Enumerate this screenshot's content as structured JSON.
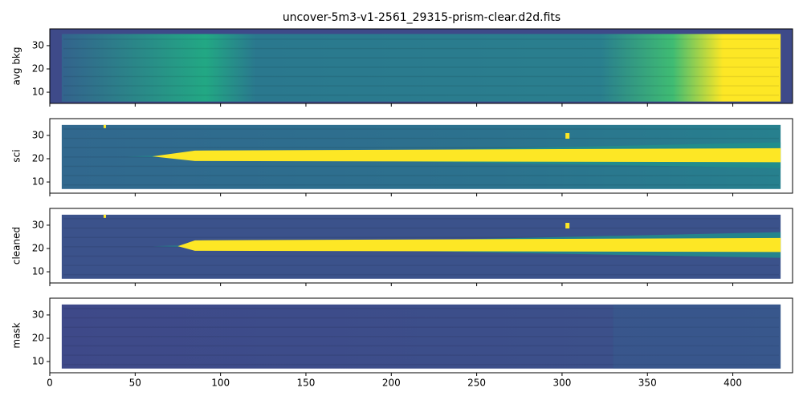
{
  "chart_data": [
    {
      "type": "image",
      "title": "uncover-5m3-v1-2561_29315-prism-clear.d2d.fits",
      "ylabel": "avg bkg",
      "ylim": [
        5.2,
        37.2
      ],
      "yticks": [
        10,
        20,
        30
      ]
    },
    {
      "type": "image",
      "ylabel": "sci",
      "ylim": [
        5.2,
        37.2
      ],
      "yticks": [
        10,
        20,
        30
      ]
    },
    {
      "type": "image",
      "ylabel": "cleaned",
      "ylim": [
        5.2,
        37.2
      ],
      "yticks": [
        10,
        20,
        30
      ]
    },
    {
      "type": "image",
      "ylabel": "mask",
      "ylim": [
        5.2,
        37.2
      ],
      "yticks": [
        10,
        20,
        30
      ],
      "xlim": [
        0,
        435
      ],
      "xticks": [
        0,
        50,
        100,
        150,
        200,
        250,
        300,
        350,
        400
      ]
    }
  ]
}
